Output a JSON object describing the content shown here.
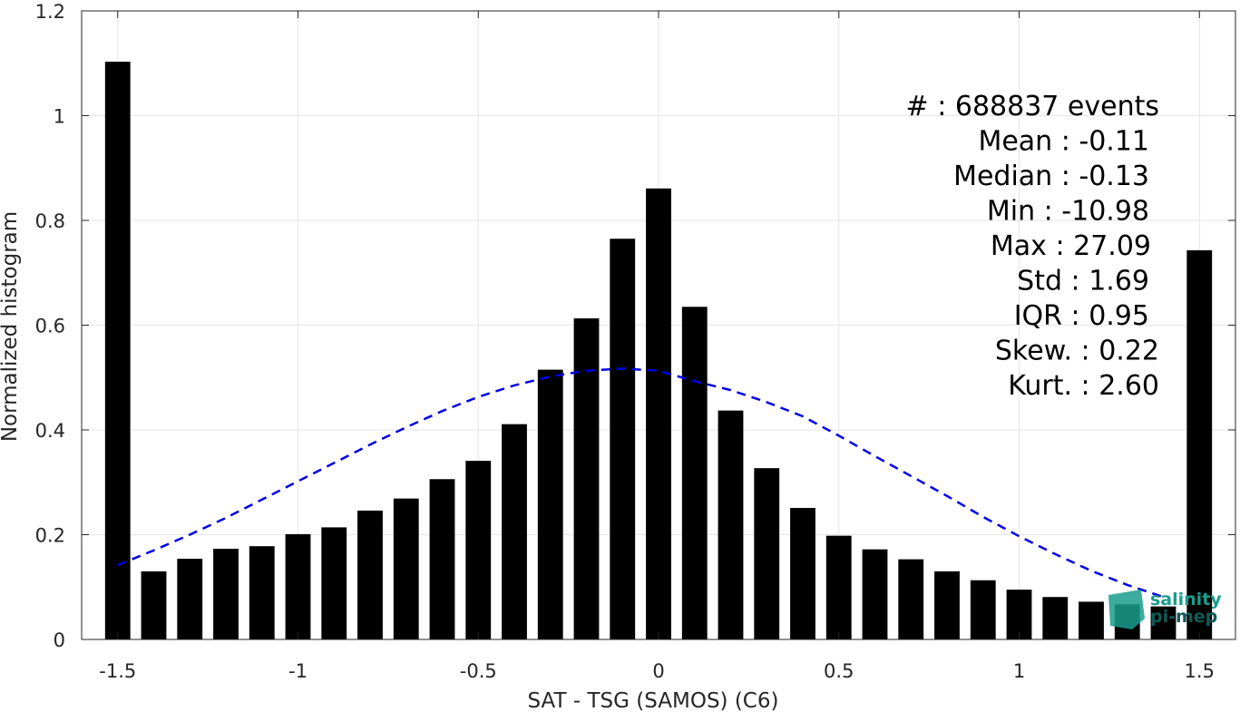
{
  "chart_data": {
    "type": "bar",
    "xlabel": "SAT - TSG (SAMOS) (C6)",
    "ylabel": "Normalized histogram",
    "xlim": [
      -1.6,
      1.6
    ],
    "ylim": [
      0,
      1.2
    ],
    "xticks": [
      -1.5,
      -1,
      -0.5,
      0,
      0.5,
      1,
      1.5
    ],
    "xtick_labels": [
      "-1.5",
      "-1",
      "-0.5",
      "0",
      "0.5",
      "1",
      "1.5"
    ],
    "yticks": [
      0,
      0.2,
      0.4,
      0.6,
      0.8,
      1,
      1.2
    ],
    "ytick_labels": [
      "0",
      "0.2",
      "0.4",
      "0.6",
      "0.8",
      "1",
      "1.2"
    ],
    "grid": true,
    "bar_width": 0.07,
    "x": [
      -1.5,
      -1.4,
      -1.3,
      -1.2,
      -1.1,
      -1.0,
      -0.9,
      -0.8,
      -0.7,
      -0.6,
      -0.5,
      -0.4,
      -0.3,
      -0.2,
      -0.1,
      0.0,
      0.1,
      0.2,
      0.3,
      0.4,
      0.5,
      0.6,
      0.7,
      0.8,
      0.9,
      1.0,
      1.1,
      1.2,
      1.3,
      1.4,
      1.5
    ],
    "values": [
      1.103,
      0.13,
      0.154,
      0.173,
      0.178,
      0.201,
      0.214,
      0.246,
      0.269,
      0.306,
      0.341,
      0.411,
      0.515,
      0.613,
      0.765,
      0.861,
      0.635,
      0.437,
      0.327,
      0.251,
      0.198,
      0.172,
      0.153,
      0.13,
      0.113,
      0.095,
      0.081,
      0.072,
      0.067,
      0.063,
      0.743
    ],
    "bar_color": "#000000",
    "fit": {
      "style": "dashed",
      "color": "#0000e6",
      "x": [
        -1.5,
        -1.4,
        -1.3,
        -1.2,
        -1.1,
        -1.0,
        -0.9,
        -0.8,
        -0.7,
        -0.6,
        -0.5,
        -0.4,
        -0.3,
        -0.2,
        -0.1,
        0.0,
        0.1,
        0.2,
        0.3,
        0.4,
        0.5,
        0.6,
        0.7,
        0.8,
        0.9,
        1.0,
        1.1,
        1.2,
        1.3,
        1.4
      ],
      "y": [
        0.142,
        0.17,
        0.2,
        0.232,
        0.267,
        0.302,
        0.337,
        0.372,
        0.405,
        0.436,
        0.463,
        0.485,
        0.502,
        0.513,
        0.517,
        0.513,
        0.493,
        0.476,
        0.453,
        0.426,
        0.389,
        0.35,
        0.312,
        0.274,
        0.234,
        0.197,
        0.163,
        0.131,
        0.104,
        0.081
      ]
    },
    "stats": [
      {
        "label": "#  : 688837 events"
      },
      {
        "label": "Mean : -0.11"
      },
      {
        "label": "Median : -0.13"
      },
      {
        "label": "Min : -10.98"
      },
      {
        "label": "Max : 27.09"
      },
      {
        "label": "Std : 1.69"
      },
      {
        "label": "IQR : 0.95"
      },
      {
        "label": "Skew. : 0.22"
      },
      {
        "label": "Kurt. : 2.60"
      }
    ]
  },
  "logo": {
    "line1": "salinity",
    "line2": "pi-mep",
    "color": "#1a9e8e",
    "dark": "#0d5c57"
  }
}
